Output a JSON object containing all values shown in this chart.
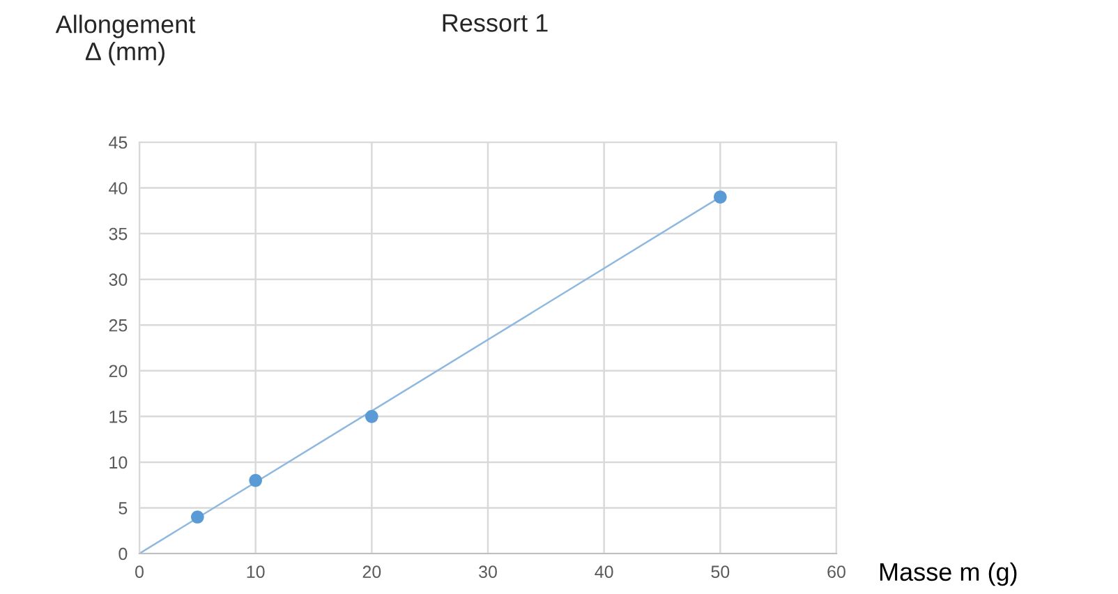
{
  "chart_data": {
    "type": "scatter",
    "title": "Ressort 1",
    "xlabel": "Masse m (g)",
    "ylabel": "Allongement\nΔ (mm)",
    "x": [
      5,
      10,
      20,
      50
    ],
    "series": [
      {
        "color": "#5b9bd5",
        "marker": "circle",
        "values": [
          4,
          8,
          15,
          39
        ]
      },
      {
        "type": "line",
        "color": "#8fb8e0",
        "x": [
          0,
          50
        ],
        "values": [
          0,
          39
        ]
      }
    ],
    "xlim": [
      0,
      60
    ],
    "xticks": [
      0,
      10,
      20,
      30,
      40,
      50,
      60
    ],
    "ylim": [
      0,
      45
    ],
    "yticks": [
      0,
      5,
      10,
      15,
      20,
      25,
      30,
      35,
      40,
      45
    ],
    "grid": true,
    "line_style": "solid"
  }
}
